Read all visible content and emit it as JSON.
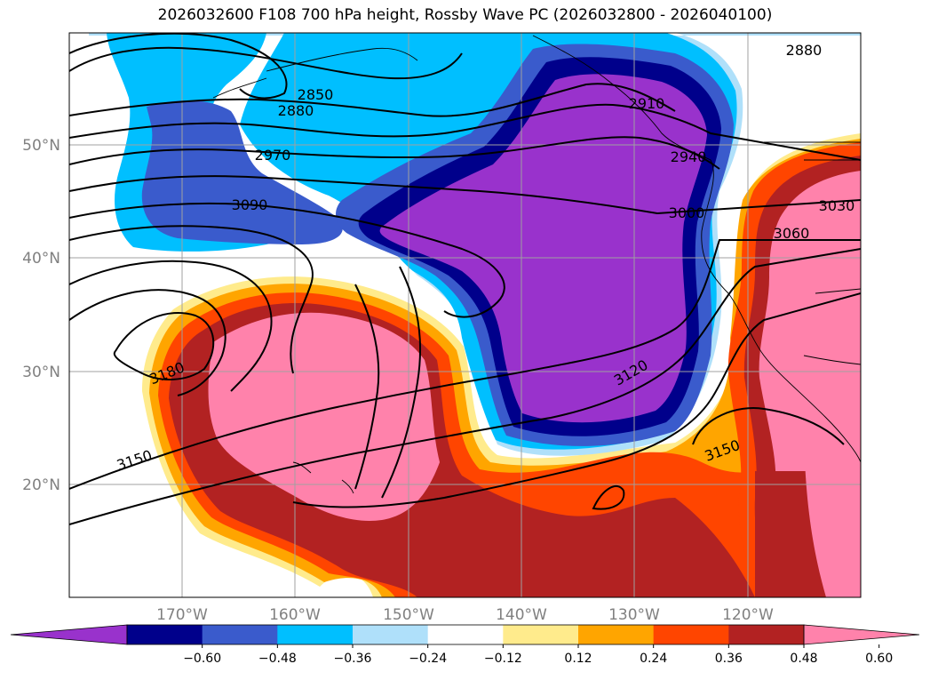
{
  "title": "2026032600 F108 700 hPa height, Rossby Wave PC (2026032800 - 2026040100)",
  "latitude_labels": [
    "50°N",
    "40°N",
    "30°N",
    "20°N"
  ],
  "longitude_labels": [
    "170°W",
    "160°W",
    "150°W",
    "140°W",
    "130°W",
    "120°W"
  ],
  "contour_labels": [
    "2850",
    "2880",
    "2880",
    "2910",
    "2940",
    "2970",
    "3000",
    "3030",
    "3060",
    "3090",
    "3120",
    "3150",
    "3150",
    "3180"
  ],
  "colorbar": {
    "ticks": [
      "−0.60",
      "−0.48",
      "−0.36",
      "−0.24",
      "−0.12",
      "0.12",
      "0.24",
      "0.36",
      "0.48",
      "0.60"
    ],
    "colors": [
      "#9932cc",
      "#00008b",
      "#3a5bcc",
      "#00bfff",
      "#afe0fa",
      "#ffffff",
      "#ffeb8c",
      "#ffa500",
      "#ff4500",
      "#b22222",
      "#ff82ab"
    ]
  },
  "colors": {
    "frame": "#000000",
    "grid": "#a0a0a0",
    "negative_strong": "#9932cc",
    "positive_strong": "#ff82ab"
  }
}
